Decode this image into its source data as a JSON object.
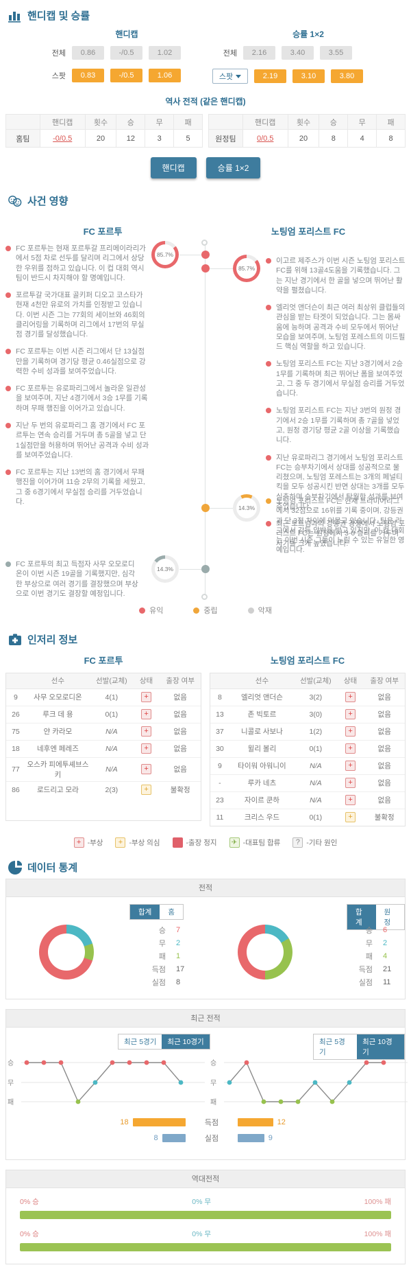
{
  "handicap_section": {
    "title": "핸디캡 및 승률",
    "handicap": {
      "title": "핸디캡",
      "total_label": "전체",
      "total": [
        "0.86",
        "-/0.5",
        "1.02"
      ],
      "spot_label": "스팟",
      "spot": [
        "0.83",
        "-/0.5",
        "1.06"
      ]
    },
    "winrate": {
      "title": "승률 1×2",
      "total_label": "전체",
      "total": [
        "2.16",
        "3.40",
        "3.55"
      ],
      "spot_label": "스팟",
      "spot": [
        "2.19",
        "3.10",
        "3.80"
      ]
    },
    "history": {
      "title": "역사 전적 (같은 핸디캡)",
      "headers": [
        "핸디캡",
        "횟수",
        "승",
        "무",
        "패"
      ],
      "rows": [
        {
          "team": "홈팀",
          "handicap": "-0/0.5",
          "count": "20",
          "win": "12",
          "draw": "3",
          "loss": "5"
        },
        {
          "team": "원정팀",
          "handicap": "0/0.5",
          "count": "20",
          "win": "8",
          "draw": "4",
          "loss": "8"
        }
      ]
    },
    "buttons": [
      "핸디캡",
      "승률 1×2"
    ]
  },
  "events_section": {
    "title": "사건 영향",
    "home_team": "FC 포르투",
    "away_team": "노팅엄 포리스트 FC",
    "home_gauge": "85.7%",
    "away_gauge": "85.7%",
    "away_neutral_gauge": "14.3%",
    "home_negative_gauge": "14.3%",
    "home_items": [
      "FC 포르투는 현재 포르투갈 프리메이라리가에서 5점 차로 선두를 달리며 리그에서 상당한 우위를 점하고 있습니다. 이 컵 대회 역시 팀이 반드시 차지해야 할 명예입니다.",
      "포르투갈 국가대표 골키퍼 디오고 코스타가 현재 4천만 유로의 가치를 인정받고 있습니다. 이번 시즌 그는 77회의 세이브와 46회의 클리어링을 기록하며 리그에서 17번의 무실점 경기를 달성했습니다.",
      "FC 포르투는 이번 시즌 리그에서 단 13실점만을 기록하며 경기당 평균 0.46실점으로 강력한 수비 성과를 보여주었습니다.",
      "FC 포르투는 유로파리그에서 놀라운 일관성을 보여주며, 지난 4경기에서 3승 1무를 기록하며 무패 행진을 이어가고 있습니다.",
      "지난 두 번의 유로파리그 홈 경기에서 FC 포르투는 연속 승리를 거두며 총 5골을 넣고 단 1실점만을 허용하며 뛰어난 공격과 수비 성과를 보여주었습니다.",
      "FC 포르투는 지난 13번의 홈 경기에서 무패 행진을 이어가며 11승 2무의 기록을 세웠고, 그 중 6경기에서 무실점 승리를 거두었습니다."
    ],
    "home_negative_item": "FC 포르투의 최고 득점자 사무 오모로디온이 이번 시즌 19골을 기록했지만, 심각한 부상으로 여러 경기를 결장했으며 부상으로 이번 경기도 결장할 예정입니다.",
    "away_items": [
      "이고르 제주스가 이번 시즌 노팅엄 포리스트 FC를 위해 13골4도움을 기록했습니다. 그는 지난 경기에서 한 골을 넣으며 뛰어난 활약을 펼쳤습니다.",
      "엘리엇 앤더슨이 최근 여러 최상위 클럽들의 관심을 받는 타겟이 되었습니다. 그는 몸싸움에 능하며 공격과 수비 모두에서 뛰어난 모습을 보여주며, 노팅엄 포레스트의 미드필드 핵심 역할을 하고 있습니다.",
      "노팅엄 포리스트 FC는 지난 3경기에서 2승 1무를 기록하며 최근 뛰어난 폼을 보여주었고, 그 중 두 경기에서 무실점 승리를 거두었습니다.",
      "노팅엄 포리스트 FC는 지난 3번의 원정 경기에서 2승 1무를 기록하며 총 7골을 넣었고, 원정 경기당 평균 2골 이상을 기록했습니다.",
      "지난 유로파리그 경기에서 노팅엄 포리스트 FC는 승부차기에서 상대를 성공적으로 물리쳤으며, 노팅엄 포레스트는 3개의 페널티킥을 모두 성공시킨 반면 상대는 3개를 모두 실축하며 승부차기에서 탁월한 성과를 보여주었습니다.",
      "최근 토트넘과의 강등권 경쟁에서 노팅엄 포리스트 FC는 원정에서 3-0 승리를 거두며 사기를 크게 높였습니다."
    ],
    "away_neutral_item": "노팅엄 포리스트 FC는 현재 프리미어리그에서 32점으로 16위를 기록 중이며, 강등권과 단 3점 차이에 머물고 있습니다. 팀은 리그에서 강등 압박을 받고 있지만, 이 컵 대회는 이번 시즌 그들이 노릴 수 있는 유일한 영예입니다.",
    "legend": [
      {
        "label": "유익",
        "color": "#e8686b"
      },
      {
        "label": "중립",
        "color": "#f0a63a"
      },
      {
        "label": "악재",
        "color": "#cfcfcf"
      }
    ],
    "colors": {
      "positive": "#e8686b",
      "neutral": "#f0a63a",
      "negative": "#9aabab",
      "track": "#ececec"
    }
  },
  "injury_section": {
    "title": "인저리 정보",
    "tables": [
      {
        "team": "FC 포르투",
        "headers": [
          "선수",
          "선발(교체)",
          "상태",
          "출장 여부"
        ],
        "rows": [
          {
            "num": "9",
            "name": "사무 오모로디온",
            "starts": "4(1)",
            "status": "injury",
            "avail": "없음"
          },
          {
            "num": "26",
            "name": "루크 데 용",
            "starts": "0(1)",
            "status": "injury",
            "avail": "없음"
          },
          {
            "num": "75",
            "name": "얀 카라모",
            "starts": "N/A",
            "status": "injury",
            "avail": "없음"
          },
          {
            "num": "18",
            "name": "네후엔 페레즈",
            "starts": "N/A",
            "status": "injury",
            "avail": "없음"
          },
          {
            "num": "77",
            "name": "오스카 피에투셰브스키",
            "starts": "N/A",
            "status": "injury",
            "avail": "없음"
          },
          {
            "num": "86",
            "name": "로드리고 모라",
            "starts": "2(3)",
            "status": "doubt",
            "avail": "불확정"
          }
        ]
      },
      {
        "team": "노팅엄 포리스트 FC",
        "headers": [
          "선수",
          "선발(교체)",
          "상태",
          "출장 여부"
        ],
        "rows": [
          {
            "num": "8",
            "name": "엘리엇 앤더슨",
            "starts": "3(2)",
            "status": "injury",
            "avail": "없음"
          },
          {
            "num": "13",
            "name": "존 빅토르",
            "starts": "3(0)",
            "status": "injury",
            "avail": "없음"
          },
          {
            "num": "37",
            "name": "니콜로 사보나",
            "starts": "1(2)",
            "status": "injury",
            "avail": "없음"
          },
          {
            "num": "30",
            "name": "윌리 볼리",
            "starts": "0(1)",
            "status": "injury",
            "avail": "없음"
          },
          {
            "num": "9",
            "name": "타이워 아워니이",
            "starts": "N/A",
            "status": "injury",
            "avail": "없음"
          },
          {
            "num": "-",
            "name": "루카 네츠",
            "starts": "N/A",
            "status": "injury",
            "avail": "없음"
          },
          {
            "num": "23",
            "name": "자이르 쿤하",
            "starts": "N/A",
            "status": "injury",
            "avail": "없음"
          },
          {
            "num": "11",
            "name": "크리스 우드",
            "starts": "0(1)",
            "status": "doubt",
            "avail": "불확정"
          }
        ]
      }
    ],
    "legend": [
      {
        "icon": "plus-red",
        "label": "-부상"
      },
      {
        "icon": "plus-yellow",
        "label": "-부상 의심"
      },
      {
        "icon": "square-red",
        "label": "-출장 정지"
      },
      {
        "icon": "plane-green",
        "label": "-대표팀 합류"
      },
      {
        "icon": "question-gray",
        "label": "-기타 원인"
      }
    ]
  },
  "stats_section": {
    "title": "데이터 통계",
    "record_panel": {
      "header": "전적",
      "home": {
        "toggle": [
          "합계",
          "홈"
        ],
        "active": 0,
        "win": 7,
        "draw": 2,
        "loss": 1,
        "stats": [
          [
            "승",
            "7"
          ],
          [
            "무",
            "2"
          ],
          [
            "패",
            "1"
          ],
          [
            "득점",
            "17"
          ],
          [
            "실점",
            "8"
          ]
        ]
      },
      "away": {
        "toggle": [
          "합계",
          "원정"
        ],
        "active": 0,
        "win": 6,
        "draw": 2,
        "loss": 4,
        "stats": [
          [
            "승",
            "6"
          ],
          [
            "무",
            "2"
          ],
          [
            "패",
            "4"
          ],
          [
            "득점",
            "21"
          ],
          [
            "실점",
            "11"
          ]
        ]
      },
      "colors": {
        "win": "#e8686b",
        "draw": "#4cb8c4",
        "loss": "#97c24e"
      }
    },
    "recent_panel": {
      "header": "최근 전적",
      "toggles": [
        "최근 5경기",
        "최근 10경기"
      ],
      "active": 1,
      "y_labels": [
        "승",
        "무",
        "패"
      ],
      "home_results": [
        "W",
        "W",
        "W",
        "L",
        "D",
        "W",
        "W",
        "W",
        "W",
        "D"
      ],
      "away_results": [
        "D",
        "W",
        "L",
        "L",
        "L",
        "D",
        "L",
        "D",
        "W",
        "W"
      ],
      "bar_labels": [
        "득점",
        "실점"
      ],
      "home_goals": 18,
      "home_conceded": 8,
      "away_goals": 12,
      "away_conceded": 9
    },
    "h2h_panel": {
      "header": "역대전적",
      "rows": [
        {
          "win": "0% 승",
          "draw": "0% 무",
          "loss": "100% 패",
          "loss_pct": 100
        },
        {
          "win": "0% 승",
          "draw": "0% 무",
          "loss": "100% 패",
          "loss_pct": 100
        }
      ]
    }
  }
}
